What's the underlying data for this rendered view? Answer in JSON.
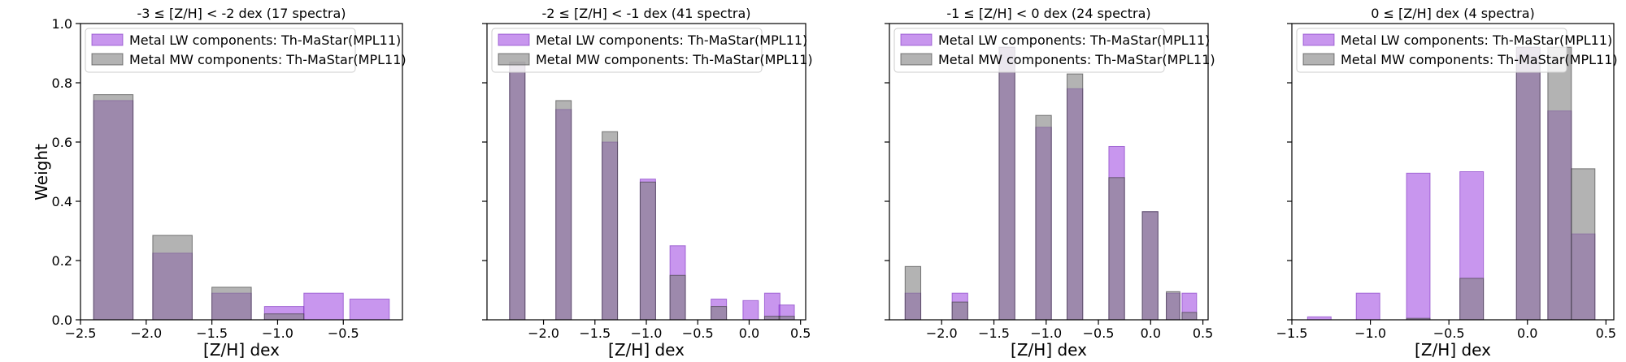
{
  "figure": {
    "ylabel": "Weight",
    "xlabel": "[Z/H] dex",
    "legend": {
      "lw_label": "Metal LW components: Th-MaStar(MPL11)",
      "mw_label": "Metal MW components: Th-MaStar(MPL11)",
      "placement": "top-left"
    },
    "colors": {
      "lw": "#9b3fe0",
      "mw": "#808080",
      "overlap": "#8062a8"
    }
  },
  "chart_data": [
    {
      "type": "bar",
      "title": "-3 ≤  [Z/H] < -2 dex (17 spectra)",
      "xlim": [
        -2.5,
        -0.05
      ],
      "ylim": [
        0,
        1.0
      ],
      "xticks": [
        -2.5,
        -2.0,
        -1.5,
        -1.0,
        -0.5
      ],
      "xtick_labels": [
        "−2.5",
        "−2.0",
        "−1.5",
        "−1.0",
        "−0.5"
      ],
      "yticks": [
        0.0,
        0.2,
        0.4,
        0.6,
        0.8,
        1.0
      ],
      "ytick_labels": [
        "0.0",
        "0.2",
        "0.4",
        "0.6",
        "0.8",
        "1.0"
      ],
      "show_ytick_labels": true,
      "series": [
        {
          "bars": [
            [
              -2.4,
              -2.1,
              0.74
            ],
            [
              -1.95,
              -1.65,
              0.225
            ],
            [
              -1.5,
              -1.2,
              0.09
            ],
            [
              -1.1,
              -0.8,
              0.045
            ],
            [
              -0.8,
              -0.5,
              0.09
            ],
            [
              -0.45,
              -0.15,
              0.07
            ]
          ]
        },
        {
          "bars": [
            [
              -2.4,
              -2.1,
              0.76
            ],
            [
              -1.95,
              -1.65,
              0.285
            ],
            [
              -1.5,
              -1.2,
              0.11
            ],
            [
              -1.1,
              -0.8,
              0.02
            ]
          ]
        }
      ]
    },
    {
      "type": "bar",
      "title": "-2 ≤  [Z/H] < -1 dex (41 spectra)",
      "xlim": [
        -2.55,
        0.55
      ],
      "ylim": [
        0,
        1.0
      ],
      "xticks": [
        -2.0,
        -1.5,
        -1.0,
        -0.5,
        0.0,
        0.5
      ],
      "xtick_labels": [
        "−2.0",
        "−1.5",
        "−1.0",
        "−0.5",
        "0.0",
        "0.5"
      ],
      "yticks": [
        0.0,
        0.2,
        0.4,
        0.6,
        0.8,
        1.0
      ],
      "ytick_labels": [
        "0.0",
        "0.2",
        "0.4",
        "0.6",
        "0.8",
        "1.0"
      ],
      "show_ytick_labels": false,
      "series": [
        {
          "bars": [
            [
              -2.33,
              -2.18,
              0.87
            ],
            [
              -1.88,
              -1.73,
              0.71
            ],
            [
              -1.43,
              -1.28,
              0.6
            ],
            [
              -1.06,
              -0.91,
              0.475
            ],
            [
              -0.77,
              -0.62,
              0.25
            ],
            [
              -0.37,
              -0.22,
              0.07
            ],
            [
              -0.06,
              0.09,
              0.065
            ],
            [
              0.15,
              0.3,
              0.09
            ],
            [
              0.29,
              0.44,
              0.05
            ]
          ]
        },
        {
          "bars": [
            [
              -2.33,
              -2.18,
              0.87
            ],
            [
              -1.88,
              -1.73,
              0.74
            ],
            [
              -1.43,
              -1.28,
              0.635
            ],
            [
              -1.06,
              -0.91,
              0.465
            ],
            [
              -0.77,
              -0.62,
              0.15
            ],
            [
              -0.37,
              -0.22,
              0.045
            ],
            [
              0.15,
              0.3,
              0.012
            ],
            [
              0.29,
              0.44,
              0.012
            ]
          ]
        }
      ]
    },
    {
      "type": "bar",
      "title": "-1 ≤  [Z/H] < 0 dex (24 spectra)",
      "xlim": [
        -2.5,
        0.55
      ],
      "ylim": [
        0,
        1.0
      ],
      "xticks": [
        -2.0,
        -1.5,
        -1.0,
        -0.5,
        0.0,
        0.5
      ],
      "xtick_labels": [
        "−2.0",
        "−1.5",
        "−1.0",
        "−0.5",
        "0.0",
        "0.5"
      ],
      "yticks": [
        0.0,
        0.2,
        0.4,
        0.6,
        0.8,
        1.0
      ],
      "ytick_labels": [
        "0.0",
        "0.2",
        "0.4",
        "0.6",
        "0.8",
        "1.0"
      ],
      "show_ytick_labels": false,
      "series": [
        {
          "bars": [
            [
              -2.35,
              -2.2,
              0.09
            ],
            [
              -1.9,
              -1.75,
              0.09
            ],
            [
              -1.45,
              -1.3,
              0.92
            ],
            [
              -1.1,
              -0.95,
              0.65
            ],
            [
              -0.8,
              -0.65,
              0.78
            ],
            [
              -0.4,
              -0.25,
              0.585
            ],
            [
              -0.08,
              0.07,
              0.365
            ],
            [
              0.15,
              0.28,
              0.09
            ],
            [
              0.3,
              0.44,
              0.09
            ]
          ]
        },
        {
          "bars": [
            [
              -2.35,
              -2.2,
              0.18
            ],
            [
              -1.9,
              -1.75,
              0.06
            ],
            [
              -1.45,
              -1.3,
              0.92
            ],
            [
              -1.1,
              -0.95,
              0.69
            ],
            [
              -0.8,
              -0.65,
              0.83
            ],
            [
              -0.4,
              -0.25,
              0.48
            ],
            [
              -0.08,
              0.07,
              0.365
            ],
            [
              0.15,
              0.28,
              0.095
            ],
            [
              0.3,
              0.44,
              0.025
            ]
          ]
        }
      ]
    },
    {
      "type": "bar",
      "title": "0 ≤  [Z/H] dex (4 spectra)",
      "xlim": [
        -1.5,
        0.55
      ],
      "ylim": [
        0,
        1.0
      ],
      "xticks": [
        -1.5,
        -1.0,
        -0.5,
        0.0,
        0.5
      ],
      "xtick_labels": [
        "−1.5",
        "−1.0",
        "−0.5",
        "0.0",
        "0.5"
      ],
      "yticks": [
        0.0,
        0.2,
        0.4,
        0.6,
        0.8,
        1.0
      ],
      "ytick_labels": [
        "0.0",
        "0.2",
        "0.4",
        "0.6",
        "0.8",
        "1.0"
      ],
      "show_ytick_labels": false,
      "series": [
        {
          "bars": [
            [
              -1.4,
              -1.25,
              0.01
            ],
            [
              -1.09,
              -0.94,
              0.09
            ],
            [
              -0.77,
              -0.62,
              0.495
            ],
            [
              -0.43,
              -0.28,
              0.5
            ],
            [
              -0.07,
              0.08,
              0.92
            ],
            [
              0.13,
              0.28,
              0.705
            ],
            [
              0.28,
              0.43,
              0.29
            ]
          ]
        },
        {
          "bars": [
            [
              -0.77,
              -0.62,
              0.005
            ],
            [
              -0.43,
              -0.28,
              0.14
            ],
            [
              -0.07,
              0.08,
              0.92
            ],
            [
              0.13,
              0.28,
              0.92
            ],
            [
              0.28,
              0.43,
              0.51
            ]
          ]
        }
      ]
    }
  ]
}
